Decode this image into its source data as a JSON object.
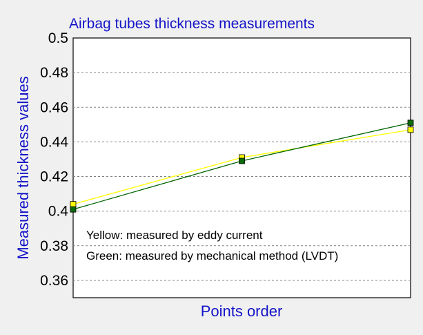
{
  "chart_data": {
    "type": "line",
    "title": "Airbag tubes thickness measurements",
    "xlabel": "Points order",
    "ylabel": "Measured thickness values",
    "x": [
      1,
      2,
      3
    ],
    "xlim": [
      1,
      3
    ],
    "ylim": [
      0.35,
      0.5
    ],
    "yticks": [
      0.36,
      0.38,
      0.4,
      0.42,
      0.44,
      0.46,
      0.48,
      0.5
    ],
    "ytick_labels": [
      "0.36",
      "0.38",
      "0.4",
      "0.42",
      "0.44",
      "0.46",
      "0.48",
      "0.5"
    ],
    "grid": "horizontal-dashed",
    "series": [
      {
        "key": "yellow",
        "values": [
          0.404,
          0.431,
          0.447
        ],
        "color": "#ffff00",
        "marker_fill": "#ffff00"
      },
      {
        "key": "green",
        "values": [
          0.401,
          0.429,
          0.451
        ],
        "color": "#006400",
        "marker_fill": "#0b6a0b"
      }
    ],
    "annotations": [
      "Yellow: measured by eddy current",
      "Green: measured by mechanical method (LVDT)"
    ],
    "colors": {
      "background": "#f0f0f0",
      "plot_background": "#ffffff",
      "text_accent": "#1414c8",
      "grid": "#808080"
    }
  }
}
